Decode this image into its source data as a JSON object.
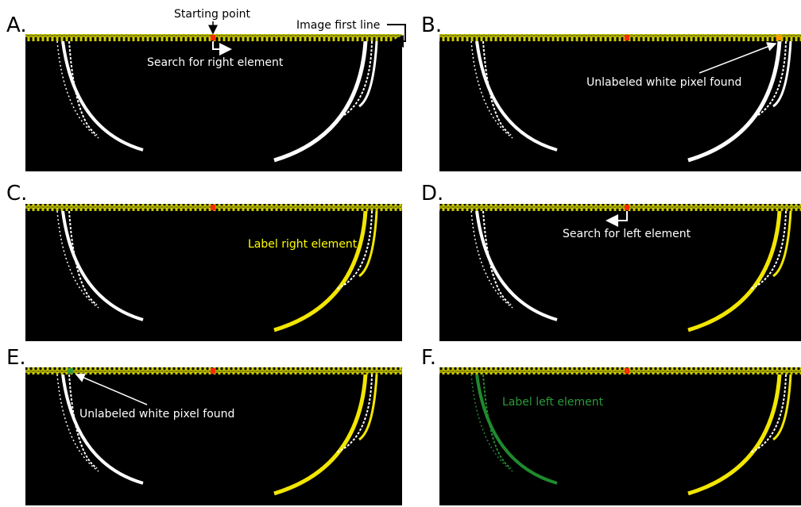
{
  "panels": [
    {
      "letter": "A.",
      "notes": [
        "Starting point",
        "Image first line",
        "Search for right element"
      ]
    },
    {
      "letter": "B.",
      "notes": [
        "Unlabeled white pixel found"
      ]
    },
    {
      "letter": "C.",
      "notes": [
        "Label right element"
      ]
    },
    {
      "letter": "D.",
      "notes": [
        "Search for left element"
      ]
    },
    {
      "letter": "E.",
      "notes": [
        "Unlabeled white pixel found"
      ]
    },
    {
      "letter": "F.",
      "notes": [
        "Label left element"
      ]
    }
  ]
}
